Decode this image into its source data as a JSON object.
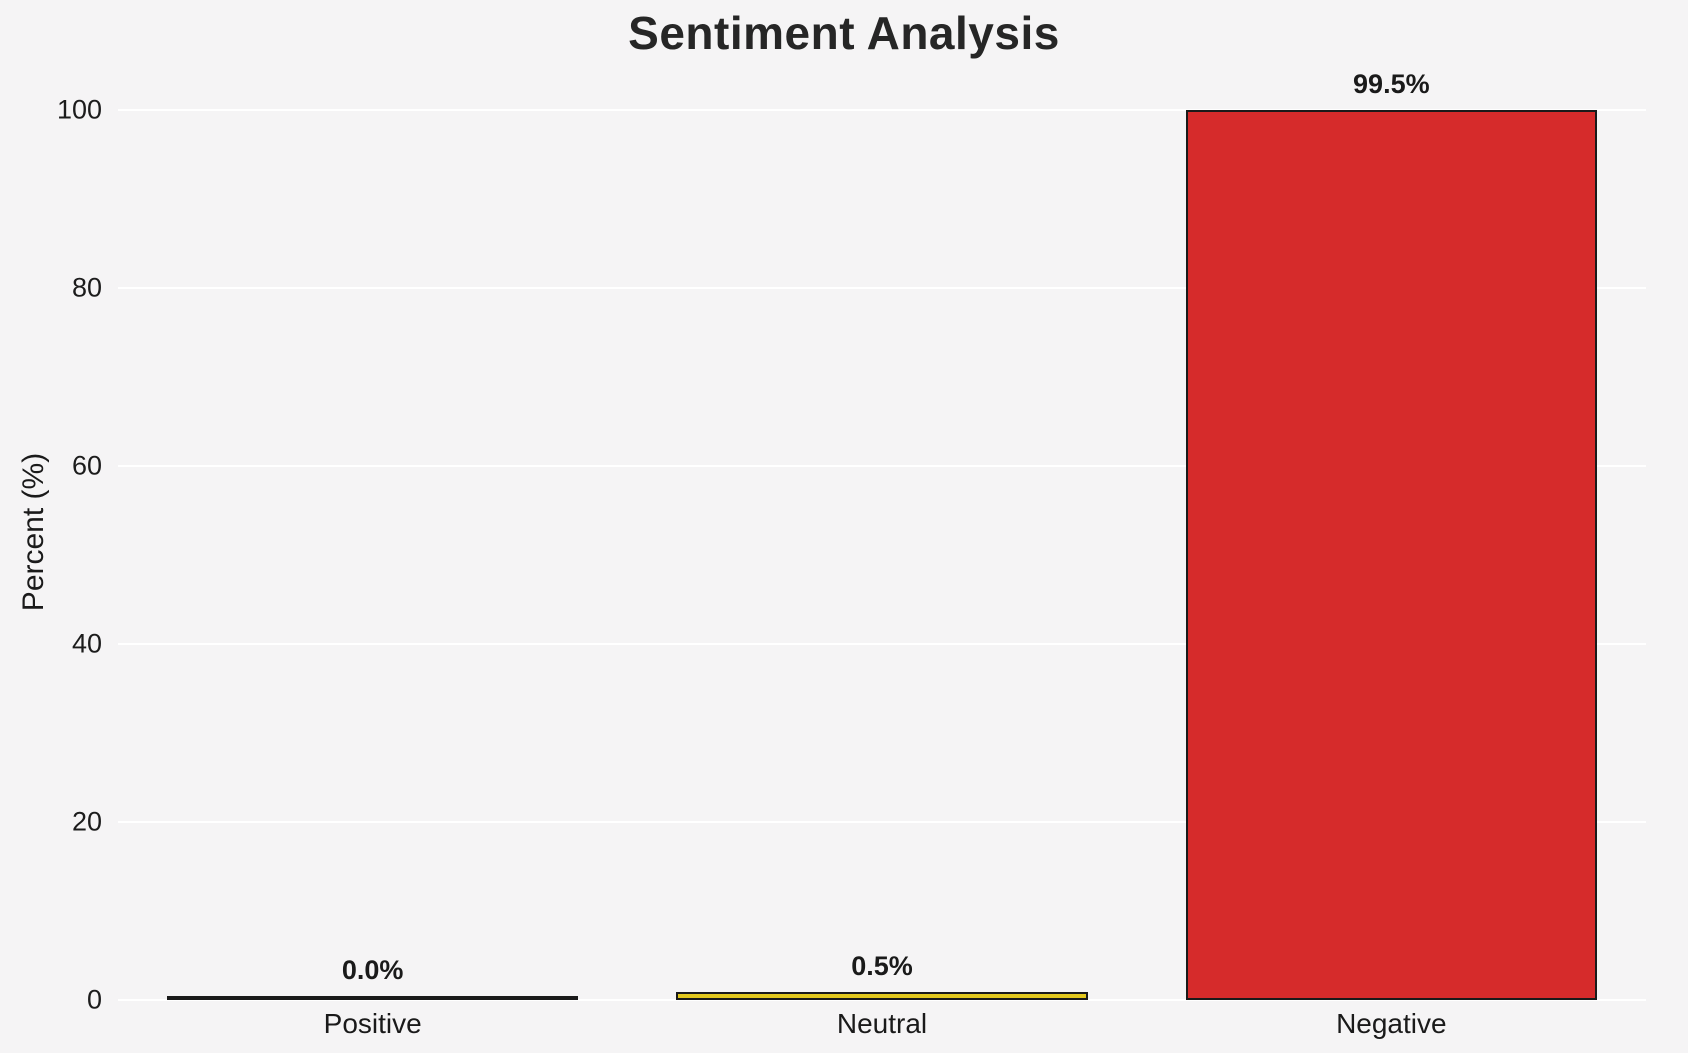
{
  "chart_data": {
    "type": "bar",
    "title": "Sentiment Analysis",
    "xlabel": "",
    "ylabel": "Percent (%)",
    "categories": [
      "Positive",
      "Neutral",
      "Negative"
    ],
    "values": [
      0.0,
      0.5,
      99.5
    ],
    "value_labels": [
      "0.0%",
      "0.5%",
      "99.5%"
    ],
    "bar_colors": [
      "#4daf4a",
      "#e3c81e",
      "#d62b2b"
    ],
    "bar_edge_color": "#1a1a1a",
    "yticks": [
      0,
      20,
      40,
      60,
      80,
      100
    ],
    "ylim": [
      0,
      105
    ],
    "grid": true,
    "legend": false,
    "background_color": "#f5f4f5",
    "gridline_color": "#ffffff"
  }
}
